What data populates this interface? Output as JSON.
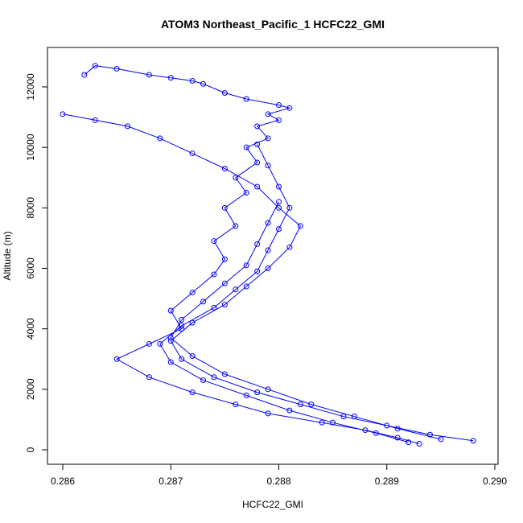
{
  "chart_data": {
    "type": "line",
    "title": "ATOM3 Northeast_Pacific_1 HCFC22_GMI",
    "xlabel": "HCFC22_GMI",
    "ylabel": "Altitude (m)",
    "xlim": [
      0.286,
      0.29
    ],
    "ylim": [
      0,
      12800
    ],
    "x_ticks": [
      "0.286",
      "0.287",
      "0.288",
      "0.289",
      "0.290"
    ],
    "x_tick_values": [
      0.286,
      0.287,
      0.288,
      0.289,
      0.29
    ],
    "y_ticks": [
      "0",
      "2000",
      "4000",
      "6000",
      "8000",
      "10000",
      "12000"
    ],
    "y_tick_values": [
      0,
      2000,
      4000,
      6000,
      8000,
      10000,
      12000
    ],
    "grid": false,
    "series_color": "#0000ff",
    "marker": "open-circle",
    "series": [
      {
        "x": [
          0.2893,
          0.2891,
          0.2888,
          0.2884,
          0.2879,
          0.2876,
          0.2872,
          0.2868,
          0.2865,
          0.2868,
          0.2871,
          0.287,
          0.2872,
          0.2874,
          0.2875,
          0.2874,
          0.2876,
          0.2875,
          0.2877,
          0.2876,
          0.2878,
          0.2877,
          0.2879,
          0.2878,
          0.288,
          0.2879,
          0.2881,
          0.288,
          0.2877,
          0.2875,
          0.2873,
          0.2872,
          0.287,
          0.2868,
          0.2865,
          0.2863,
          0.2862
        ],
        "y": [
          200,
          400,
          650,
          900,
          1200,
          1500,
          1900,
          2400,
          3000,
          3500,
          4000,
          4600,
          5200,
          5800,
          6300,
          6900,
          7400,
          8000,
          8500,
          9000,
          9500,
          10000,
          10300,
          10700,
          10900,
          11100,
          11300,
          11400,
          11600,
          11800,
          12100,
          12200,
          12300,
          12400,
          12600,
          12700,
          12400
        ]
      },
      {
        "x": [
          0.2898,
          0.2894,
          0.289,
          0.2886,
          0.2882,
          0.2878,
          0.2874,
          0.2871,
          0.287,
          0.2872,
          0.2875,
          0.2877,
          0.2879,
          0.2881,
          0.2882,
          0.288,
          0.2878,
          0.2875,
          0.2872,
          0.2869,
          0.2866,
          0.2863,
          0.286
        ],
        "y": [
          300,
          500,
          800,
          1100,
          1500,
          1900,
          2400,
          3000,
          3600,
          4200,
          4800,
          5400,
          6000,
          6700,
          7400,
          8000,
          8700,
          9300,
          9800,
          10300,
          10700,
          10900,
          11100
        ]
      },
      {
        "x": [
          0.2892,
          0.2889,
          0.2885,
          0.2881,
          0.2877,
          0.2873,
          0.287,
          0.2869,
          0.2871,
          0.2874,
          0.2876,
          0.2878,
          0.2879,
          0.288,
          0.2881,
          0.288,
          0.2879,
          0.2878
        ],
        "y": [
          250,
          550,
          900,
          1300,
          1800,
          2300,
          2900,
          3500,
          4100,
          4700,
          5300,
          5900,
          6600,
          7300,
          8000,
          8700,
          9400,
          10100
        ]
      },
      {
        "x": [
          0.2895,
          0.2891,
          0.2887,
          0.2883,
          0.2879,
          0.2875,
          0.2872,
          0.287,
          0.2871,
          0.2873,
          0.2875,
          0.2877,
          0.2878,
          0.2879,
          0.288
        ],
        "y": [
          350,
          700,
          1100,
          1500,
          2000,
          2500,
          3100,
          3700,
          4300,
          4900,
          5500,
          6100,
          6800,
          7500,
          8200
        ]
      }
    ]
  }
}
